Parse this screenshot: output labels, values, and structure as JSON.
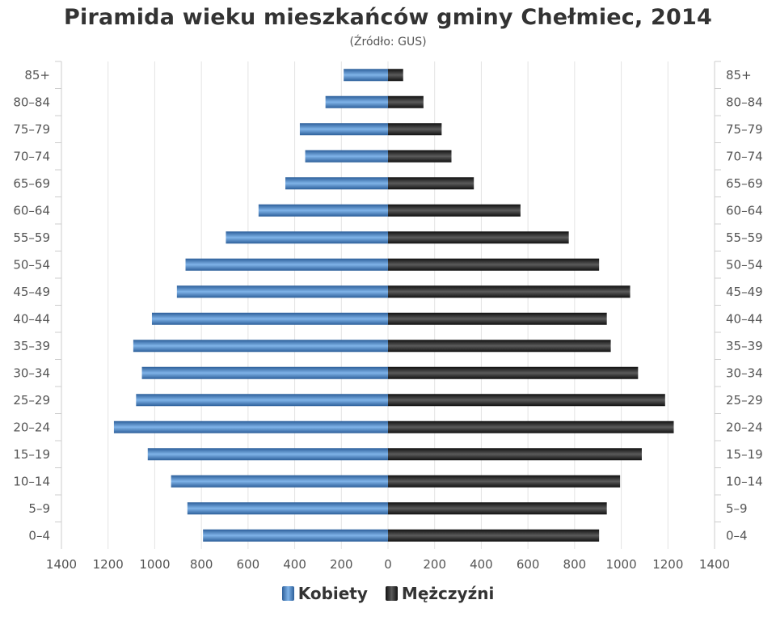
{
  "chart_data": {
    "type": "bar",
    "title": "Piramida wieku mieszkańców gminy Chełmiec, 2014",
    "subtitle": "(Źródło: GUS)",
    "categories": [
      "85+",
      "80–84",
      "75–79",
      "70–74",
      "65–69",
      "60–64",
      "55–59",
      "50–54",
      "45–49",
      "40–44",
      "35–39",
      "30–34",
      "25–29",
      "20–24",
      "15–19",
      "10–14",
      "5–9",
      "0–4"
    ],
    "series": [
      {
        "name": "Kobiety",
        "values": [
          190,
          268,
          378,
          355,
          440,
          555,
          695,
          868,
          905,
          1012,
          1092,
          1055,
          1080,
          1175,
          1030,
          930,
          860,
          793
        ]
      },
      {
        "name": "Mężczyźni",
        "values": [
          65,
          152,
          230,
          272,
          368,
          568,
          775,
          905,
          1038,
          938,
          955,
          1072,
          1188,
          1225,
          1088,
          995,
          938,
          905
        ]
      }
    ],
    "xlim": [
      -1400,
      1400
    ],
    "x_ticks": [
      "1400",
      "1200",
      "1000",
      "800",
      "600",
      "400",
      "200",
      "0",
      "200",
      "400",
      "600",
      "800",
      "1000",
      "1200",
      "1400"
    ],
    "grid": true,
    "legend_position": "bottom"
  },
  "colors": {
    "female_dark": "#2d5f9a",
    "female_light": "#7fb3e8",
    "male_dark": "#111111",
    "male_light": "#5a5a5a",
    "grid": "#e3e3e3",
    "text": "#555555"
  }
}
